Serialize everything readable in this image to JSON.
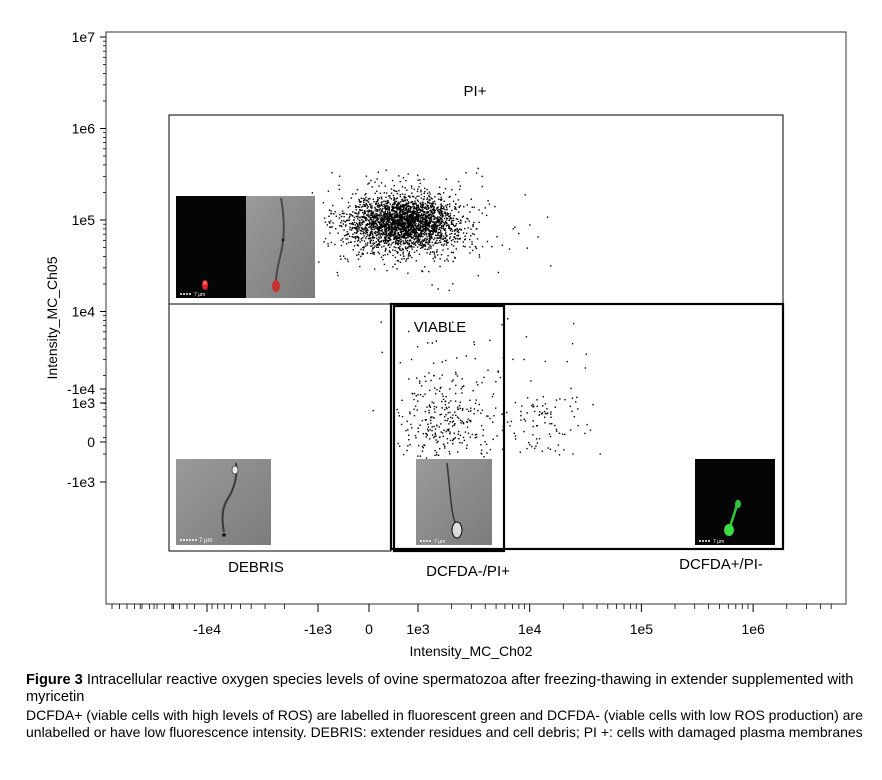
{
  "chart_data": {
    "type": "scatter",
    "x_axis": {
      "label": "Intensity_MC_Ch02",
      "scale": "biexponential",
      "tick_labels": [
        "-1e4",
        "-1e3",
        "0",
        "1e3",
        "1e4",
        "1e5",
        "1e6"
      ]
    },
    "y_axis": {
      "label": "Intensity_MC_Ch05",
      "scale": "biexponential",
      "tick_labels": [
        "1e7",
        "1e6",
        "1e5",
        "1e4",
        "1e3",
        "0",
        "-1e3",
        "-1e4"
      ]
    },
    "gates": [
      {
        "name": "PI+",
        "label": "PI+"
      },
      {
        "name": "VIABLE",
        "label": "VIABLE"
      },
      {
        "name": "DEBRIS",
        "label": "DEBRIS"
      },
      {
        "name": "DCFDA-/PI+",
        "label": "DCFDA-/PI+"
      },
      {
        "name": "DCFDA+/PI-",
        "label": "DCFDA+/PI-"
      }
    ],
    "clusters": [
      {
        "population": "PI+",
        "center": [
          2000,
          90000
        ],
        "events": "dense"
      },
      {
        "population": "DCFDA-",
        "center": [
          1500,
          300
        ],
        "events": "sparse"
      },
      {
        "population": "DCFDA+",
        "center": [
          12000,
          300
        ],
        "events": "sparse"
      }
    ],
    "inset_images": [
      {
        "population": "PI+",
        "scale_bar": "7 µm",
        "colors": [
          "red",
          "brightfield"
        ]
      },
      {
        "population": "DEBRIS",
        "scale_bar": "7 µm",
        "colors": [
          "brightfield"
        ]
      },
      {
        "population": "DCFDA-/PI+",
        "scale_bar": "7 µm",
        "colors": [
          "brightfield"
        ]
      },
      {
        "population": "DCFDA+/PI-",
        "scale_bar": "7 µm",
        "colors": [
          "green"
        ]
      }
    ]
  },
  "caption": {
    "figure_label": "Figure 3",
    "title": " Intracellular reactive oxygen species levels of ovine spermatozoa after freezing-thawing in extender supplemented with myricetin",
    "body": " DCFDA+ (viable cells with high levels of ROS) are labelled in fluorescent green and DCFDA- (viable cells with low ROS production) are unlabelled or have low fluorescence intensity. DEBRIS: extender residues and cell debris; PI +: cells with damaged plasma membranes"
  },
  "colors": {
    "axis": "#000000",
    "points": "#000000",
    "pi_fluor": "#e0202a",
    "dcfda_fluor": "#2ec83a",
    "brightfield": "#8a8a8a"
  }
}
